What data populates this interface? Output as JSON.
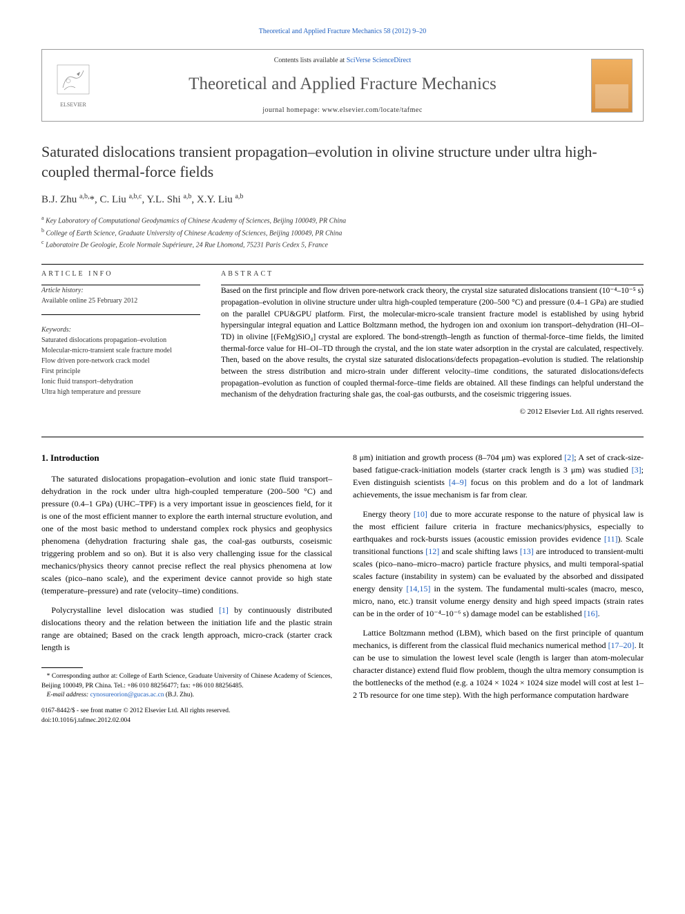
{
  "citation": "Theoretical and Applied Fracture Mechanics 58 (2012) 9–20",
  "header": {
    "contents_prefix": "Contents lists available at ",
    "contents_link": "SciVerse ScienceDirect",
    "journal_name": "Theoretical and Applied Fracture Mechanics",
    "homepage_prefix": "journal homepage: ",
    "homepage_url": "www.elsevier.com/locate/tafmec",
    "publisher": "ELSEVIER"
  },
  "title": "Saturated dislocations transient propagation–evolution in olivine structure under ultra high-coupled thermal-force fields",
  "authors_html": "B.J. Zhu <sup>a,b,</sup>*, C. Liu <sup>a,b,c</sup>, Y.L. Shi <sup>a,b</sup>, X.Y. Liu <sup>a,b</sup>",
  "affiliations": {
    "a": "Key Laboratory of Computational Geodynamics of Chinese Academy of Sciences, Beijing 100049, PR China",
    "b": "College of Earth Science, Graduate University of Chinese Academy of Sciences, Beijing 100049, PR China",
    "c": "Laboratoire De Geologie, Ecole Normale Supérieure, 24 Rue Lhomond, 75231 Paris Cedex 5, France"
  },
  "article_info": {
    "label": "ARTICLE INFO",
    "history_label": "Article history:",
    "history": "Available online 25 February 2012",
    "keywords_label": "Keywords:",
    "keywords": [
      "Saturated dislocations propagation–evolution",
      "Molecular-micro-transient scale fracture model",
      "Flow driven pore-network crack model",
      "First principle",
      "Ionic fluid transport–dehydration",
      "Ultra high temperature and pressure"
    ]
  },
  "abstract": {
    "label": "ABSTRACT",
    "text": "Based on the first principle and flow driven pore-network crack theory, the crystal size saturated dislocations transient (10⁻⁴–10⁻⁵ s) propagation–evolution in olivine structure under ultra high-coupled temperature (200–500 °C) and pressure (0.4–1 GPa) are studied on the parallel CPU&GPU platform. First, the molecular-micro-scale transient fracture model is established by using hybrid hypersingular integral equation and Lattice Boltzmann method, the hydrogen ion and oxonium ion transport–dehydration (HI–OI–TD) in olivine [(FeMg)SiO₄] crystal are explored. The bond-strength–length as function of thermal-force–time fields, the limited thermal-force value for HI–OI–TD through the crystal, and the ion state water adsorption in the crystal are calculated, respectively. Then, based on the above results, the crystal size saturated dislocations/defects propagation–evolution is studied. The relationship between the stress distribution and micro-strain under different velocity–time conditions, the saturated dislocations/defects propagation–evolution as function of coupled thermal-force–time fields are obtained. All these findings can helpful understand the mechanism of the dehydration fracturing shale gas, the coal-gas outbursts, and the coseismic triggering issues.",
    "copyright": "© 2012 Elsevier Ltd. All rights reserved."
  },
  "body": {
    "section_heading": "1. Introduction",
    "col1_p1": "The saturated dislocations propagation–evolution and ionic state fluid transport–dehydration in the rock under ultra high-coupled temperature (200–500 °C) and pressure (0.4–1 GPa) (UHC–TPF) is a very important issue in geosciences field, for it is one of the most efficient manner to explore the earth internal structure evolution, and one of the most basic method to understand complex rock physics and geophysics phenomena (dehydration fracturing shale gas, the coal-gas outbursts, coseismic triggering problem and so on). But it is also very challenging issue for the classical mechanics/physics theory cannot precise reflect the real physics phenomena at low scales (pico–nano scale), and the experiment device cannot provide so high state (temperature–pressure) and rate (velocity–time) conditions.",
    "col1_p2_pre": "Polycrystalline level dislocation was studied ",
    "col1_p2_ref1": "[1]",
    "col1_p2_post": " by continuously distributed dislocations theory and the relation between the initiation life and the plastic strain range are obtained; Based on the crack length approach, micro-crack (starter crack length is",
    "col2_p1_pre": "8 μm) initiation and growth process (8–704 μm) was explored ",
    "col2_p1_ref2": "[2]",
    "col2_p1_mid1": "; A set of crack-size-based fatigue-crack-initiation models (starter crack length is 3 μm) was studied ",
    "col2_p1_ref3": "[3]",
    "col2_p1_mid2": "; Even distinguish scientists ",
    "col2_p1_ref49": "[4–9]",
    "col2_p1_post": " focus on this problem and do a lot of landmark achievements, the issue mechanism is far from clear.",
    "col2_p2_pre": "Energy theory ",
    "col2_p2_ref10": "[10]",
    "col2_p2_mid1": " due to more accurate response to the nature of physical law is the most efficient failure criteria in fracture mechanics/physics, especially to earthquakes and rock-bursts issues (acoustic emission provides evidence ",
    "col2_p2_ref11": "[11]",
    "col2_p2_mid2": "). Scale transitional functions ",
    "col2_p2_ref12": "[12]",
    "col2_p2_mid3": " and scale shifting laws ",
    "col2_p2_ref13": "[13]",
    "col2_p2_mid4": " are introduced to transient-multi scales (pico–nano–micro–macro) particle fracture physics, and multi temporal-spatial scales facture (instability in system) can be evaluated by the absorbed and dissipated energy density ",
    "col2_p2_ref1415": "[14,15]",
    "col2_p2_mid5": " in the system. The fundamental multi-scales (macro, mesco, micro, nano, etc.) transit volume energy density and high speed impacts (strain rates can be in the order of 10⁻⁴–10⁻⁶ s) damage model can be established ",
    "col2_p2_ref16": "[16]",
    "col2_p2_post": ".",
    "col2_p3_pre": "Lattice Boltzmann method (LBM), which based on the first principle of quantum mechanics, is different from the classical fluid mechanics numerical method ",
    "col2_p3_ref1720": "[17–20]",
    "col2_p3_post": ". It can be use to simulation the lowest level scale (length is larger than atom-molecular character distance) extend fluid flow problem, though the ultra memory consumption is the bottlenecks of the method (e.g. a 1024 × 1024 × 1024 size model will cost at lest 1–2 Tb resource for one time step). With the high performance computation hardware"
  },
  "footnote": {
    "corresponding": "* Corresponding author at: College of Earth Science, Graduate University of Chinese Academy of Sciences, Beijing 100049, PR China. Tel.: +86 010 88256477; fax: +86 010 88256485.",
    "email_label": "E-mail address: ",
    "email": "cynosureorion@gucas.ac.cn",
    "email_attrib": " (B.J. Zhu)."
  },
  "doi": {
    "line1": "0167-8442/$ - see front matter © 2012 Elsevier Ltd. All rights reserved.",
    "line2": "doi:10.1016/j.tafmec.2012.02.004"
  }
}
